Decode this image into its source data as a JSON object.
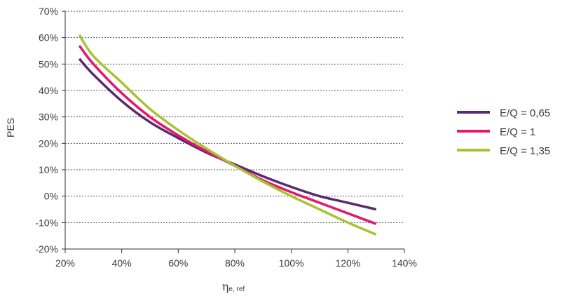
{
  "chart_data": {
    "type": "line",
    "xlabel_main": "η",
    "xlabel_sub": "e, ref",
    "ylabel": "PES",
    "xlim": [
      20,
      140
    ],
    "ylim": [
      -20,
      70
    ],
    "xticks": [
      20,
      40,
      60,
      80,
      100,
      120,
      140
    ],
    "yticks": [
      -20,
      -10,
      0,
      10,
      20,
      30,
      40,
      50,
      60,
      70
    ],
    "xtick_labels": [
      "20%",
      "40%",
      "60%",
      "80%",
      "100%",
      "120%",
      "140%"
    ],
    "ytick_labels": [
      "-20%",
      "-10%",
      "0%",
      "10%",
      "20%",
      "30%",
      "40%",
      "50%",
      "60%",
      "70%"
    ],
    "grid": "horizontal-dotted",
    "legend_position": "right",
    "series": [
      {
        "name": "E/Q = 0,65",
        "color": "#5b2a6e",
        "x": [
          25,
          30,
          40,
          50,
          60,
          70,
          80,
          90,
          100,
          110,
          120,
          130
        ],
        "y": [
          52,
          46,
          36,
          28,
          22,
          16.5,
          12,
          7.5,
          3.5,
          0,
          -2.5,
          -5
        ]
      },
      {
        "name": "E/Q = 1",
        "color": "#e2186f",
        "x": [
          25,
          30,
          40,
          50,
          60,
          70,
          80,
          90,
          100,
          110,
          120,
          130
        ],
        "y": [
          57,
          50,
          39,
          30,
          23,
          17,
          11.5,
          6,
          1.5,
          -2.5,
          -6.5,
          -10.5
        ]
      },
      {
        "name": "E/Q = 1,35",
        "color": "#a8c332",
        "x": [
          25,
          30,
          40,
          50,
          60,
          70,
          80,
          90,
          100,
          110,
          120,
          130
        ],
        "y": [
          61,
          53,
          43,
          33,
          25,
          18,
          11.5,
          5.5,
          0,
          -5,
          -10,
          -14.5
        ]
      }
    ]
  }
}
